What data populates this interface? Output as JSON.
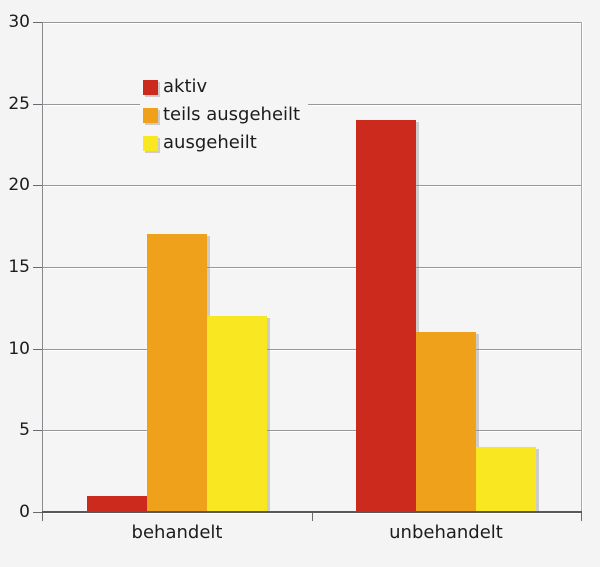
{
  "chart_data": {
    "type": "bar",
    "categories": [
      "behandelt",
      "unbehandelt"
    ],
    "series": [
      {
        "name": "aktiv",
        "color": "#cc2a1d",
        "values": [
          1,
          24
        ]
      },
      {
        "name": "teils ausgeheilt",
        "color": "#f0a11b",
        "values": [
          17,
          11
        ]
      },
      {
        "name": "ausgeheilt",
        "color": "#f9e821",
        "values": [
          12,
          4
        ]
      }
    ],
    "title": "",
    "xlabel": "",
    "ylabel": "",
    "ylim": [
      0,
      30
    ],
    "yticks": [
      0,
      5,
      10,
      15,
      20,
      25,
      30
    ],
    "grid": true,
    "legend_position": "inside-top-left"
  },
  "colors": {
    "page_background": "#f4f4f4",
    "plot_background": "#f5f5f5",
    "gridline": "#98989c",
    "gridline_highlight": "#ffffff",
    "axis_line": "#8a8a8e",
    "right_border": "#a8a8ac",
    "baseline": "#58585c",
    "tick": "#6a6a6e",
    "text": "#1c1c1c",
    "bar_shadow": "rgba(130,130,130,0.35)"
  }
}
